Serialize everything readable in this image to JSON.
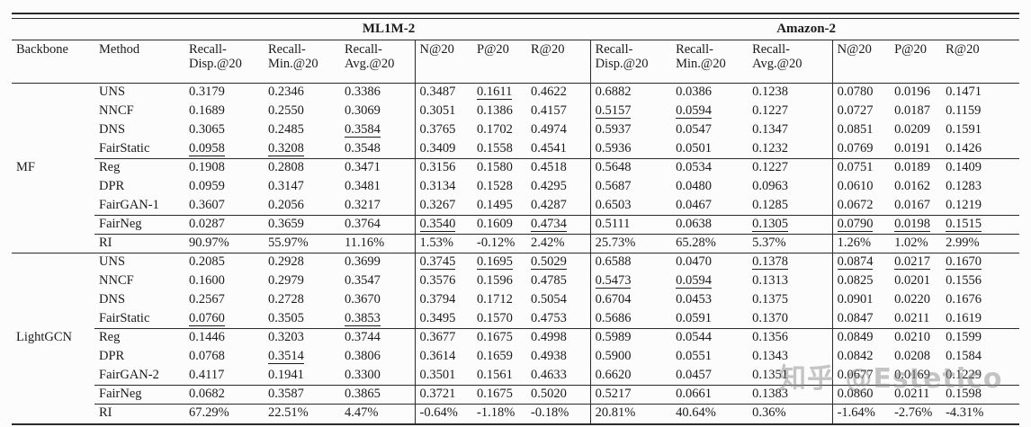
{
  "table": {
    "group_headers": [
      {
        "label": "ML1M-2"
      },
      {
        "label": "Amazon-2"
      }
    ],
    "col_headers": [
      "Backbone",
      "Method",
      "Recall-\nDisp.@20",
      "Recall-\nMin.@20",
      "Recall-\nAvg.@20",
      "N@20",
      "P@20",
      "R@20",
      "Recall-\nDisp.@20",
      "Recall-\nMin.@20",
      "Recall-\nAvg.@20",
      "N@20",
      "P@20",
      "R@20"
    ],
    "sections": [
      {
        "backbone": "MF",
        "rows": [
          {
            "method": "UNS",
            "cells": [
              "0.3179",
              "0.2346",
              "0.3386",
              "0.3487",
              {
                "u": "0.1611"
              },
              "0.4622",
              "0.6882",
              "0.0386",
              "0.1238",
              "0.0780",
              "0.0196",
              "0.1471"
            ]
          },
          {
            "method": "NNCF",
            "cells": [
              "0.1689",
              "0.2550",
              "0.3069",
              "0.3051",
              "0.1386",
              "0.4157",
              {
                "u": "0.5157"
              },
              {
                "u": "0.0594"
              },
              "0.1227",
              "0.0727",
              "0.0187",
              "0.1159"
            ]
          },
          {
            "method": "DNS",
            "cells": [
              "0.3065",
              "0.2485",
              {
                "u": "0.3584"
              },
              {
                "b": "0.3765"
              },
              {
                "b": "0.1702"
              },
              {
                "b": "0.4974"
              },
              "0.5937",
              "0.0547",
              {
                "b": "0.1347"
              },
              {
                "b": "0.0851"
              },
              {
                "b": "0.0209"
              },
              {
                "b": "0.1591"
              }
            ]
          },
          {
            "method": "FairStatic",
            "cells": [
              {
                "u": "0.0958"
              },
              {
                "u": "0.3208"
              },
              "0.3548",
              "0.3409",
              "0.1558",
              "0.4541",
              "0.5936",
              "0.0501",
              "0.1232",
              "0.0769",
              "0.0191",
              "0.1426"
            ]
          },
          {
            "method": "Reg",
            "rule": "partial",
            "cells": [
              "0.1908",
              "0.2808",
              "0.3471",
              "0.3156",
              "0.1580",
              "0.4518",
              "0.5648",
              "0.0534",
              "0.1227",
              "0.0751",
              "0.0189",
              "0.1409"
            ]
          },
          {
            "method": "DPR",
            "cells": [
              "0.0959",
              "0.3147",
              "0.3481",
              "0.3134",
              "0.1528",
              "0.4295",
              "0.5687",
              "0.0480",
              "0.0963",
              "0.0610",
              "0.0162",
              "0.1283"
            ]
          },
          {
            "method": "FairGAN-1",
            "cells": [
              "0.3607",
              "0.2056",
              "0.3217",
              "0.3267",
              "0.1495",
              "0.4287",
              "0.6503",
              "0.0467",
              "0.1285",
              "0.0672",
              "0.0167",
              "0.1219"
            ]
          },
          {
            "method": "FairNeg",
            "method_bold": true,
            "rule": "partial",
            "cells": [
              {
                "b": "0.0287"
              },
              {
                "b": "0.3659"
              },
              {
                "b": "0.3764"
              },
              {
                "u": "0.3540"
              },
              "0.1609",
              {
                "u": "0.4734"
              },
              {
                "b": "0.5111"
              },
              {
                "b": "0.0638"
              },
              {
                "u": "0.1305"
              },
              {
                "u": "0.0790"
              },
              {
                "u": "0.0198"
              },
              {
                "u": "0.1515"
              }
            ]
          },
          {
            "method": "RI",
            "method_bold": true,
            "rule": "partial",
            "cells": [
              "90.97%",
              "55.97%",
              "11.16%",
              "1.53%",
              "-0.12%",
              "2.42%",
              "25.73%",
              "65.28%",
              "5.37%",
              "1.26%",
              "1.02%",
              "2.99%"
            ]
          }
        ]
      },
      {
        "backbone": "LightGCN",
        "rows": [
          {
            "method": "UNS",
            "rule": "full",
            "cells": [
              "0.2085",
              "0.2928",
              "0.3699",
              {
                "u": "0.3745"
              },
              {
                "u": "0.1695"
              },
              {
                "u": "0.5029"
              },
              "0.6588",
              "0.0470",
              {
                "u": "0.1378"
              },
              {
                "u": "0.0874"
              },
              {
                "u": "0.0217"
              },
              {
                "u": "0.1670"
              }
            ]
          },
          {
            "method": "NNCF",
            "cells": [
              "0.1600",
              "0.2979",
              "0.3547",
              "0.3576",
              "0.1596",
              "0.4785",
              {
                "u": "0.5473"
              },
              {
                "u": "0.0594"
              },
              "0.1313",
              "0.0825",
              "0.0201",
              "0.1556"
            ]
          },
          {
            "method": "DNS",
            "cells": [
              "0.2567",
              "0.2728",
              "0.3670",
              {
                "b": "0.3794"
              },
              {
                "b": "0.1712"
              },
              {
                "b": "0.5054"
              },
              "0.6704",
              "0.0453",
              "0.1375",
              {
                "b": "0.0901"
              },
              {
                "b": "0.0220"
              },
              {
                "b": "0.1676"
              }
            ]
          },
          {
            "method": "FairStatic",
            "cells": [
              {
                "u": "0.0760"
              },
              "0.3505",
              {
                "u": "0.3853"
              },
              "0.3495",
              "0.1570",
              "0.4753",
              "0.5686",
              "0.0591",
              "0.1370",
              "0.0847",
              "0.0211",
              "0.1619"
            ]
          },
          {
            "method": "Reg",
            "rule": "partial",
            "cells": [
              "0.1446",
              "0.3203",
              "0.3744",
              "0.3677",
              "0.1675",
              "0.4998",
              "0.5989",
              "0.0544",
              "0.1356",
              "0.0849",
              "0.0210",
              "0.1599"
            ]
          },
          {
            "method": "DPR",
            "cells": [
              "0.0768",
              {
                "u": "0.3514"
              },
              "0.3806",
              "0.3614",
              "0.1659",
              "0.4938",
              "0.5900",
              "0.0551",
              "0.1343",
              "0.0842",
              "0.0208",
              "0.1584"
            ]
          },
          {
            "method": "FairGAN-2",
            "cells": [
              "0.4117",
              "0.1941",
              "0.3300",
              "0.3501",
              "0.1561",
              "0.4633",
              "0.6620",
              "0.0457",
              "0.1351",
              "0.0677",
              "0.0169",
              "0.1229"
            ]
          },
          {
            "method": "FairNeg",
            "method_bold": true,
            "rule": "partial",
            "cells": [
              {
                "b": "0.0682"
              },
              {
                "b": "0.3587"
              },
              {
                "b": "0.3865"
              },
              "0.3721",
              "0.1675",
              "0.5020",
              {
                "b": "0.5217"
              },
              {
                "b": "0.0661"
              },
              {
                "b": "0.1383"
              },
              "0.0860",
              "0.0211",
              "0.1598"
            ]
          },
          {
            "method": "RI",
            "method_bold": true,
            "rule": "partial",
            "cells": [
              "67.29%",
              "22.51%",
              "4.47%",
              "-0.64%",
              "-1.18%",
              "-0.18%",
              "20.81%",
              "40.64%",
              "0.36%",
              "-1.64%",
              "-2.76%",
              "-4.31%"
            ]
          }
        ]
      }
    ]
  },
  "watermark": "知乎 @Estetico"
}
